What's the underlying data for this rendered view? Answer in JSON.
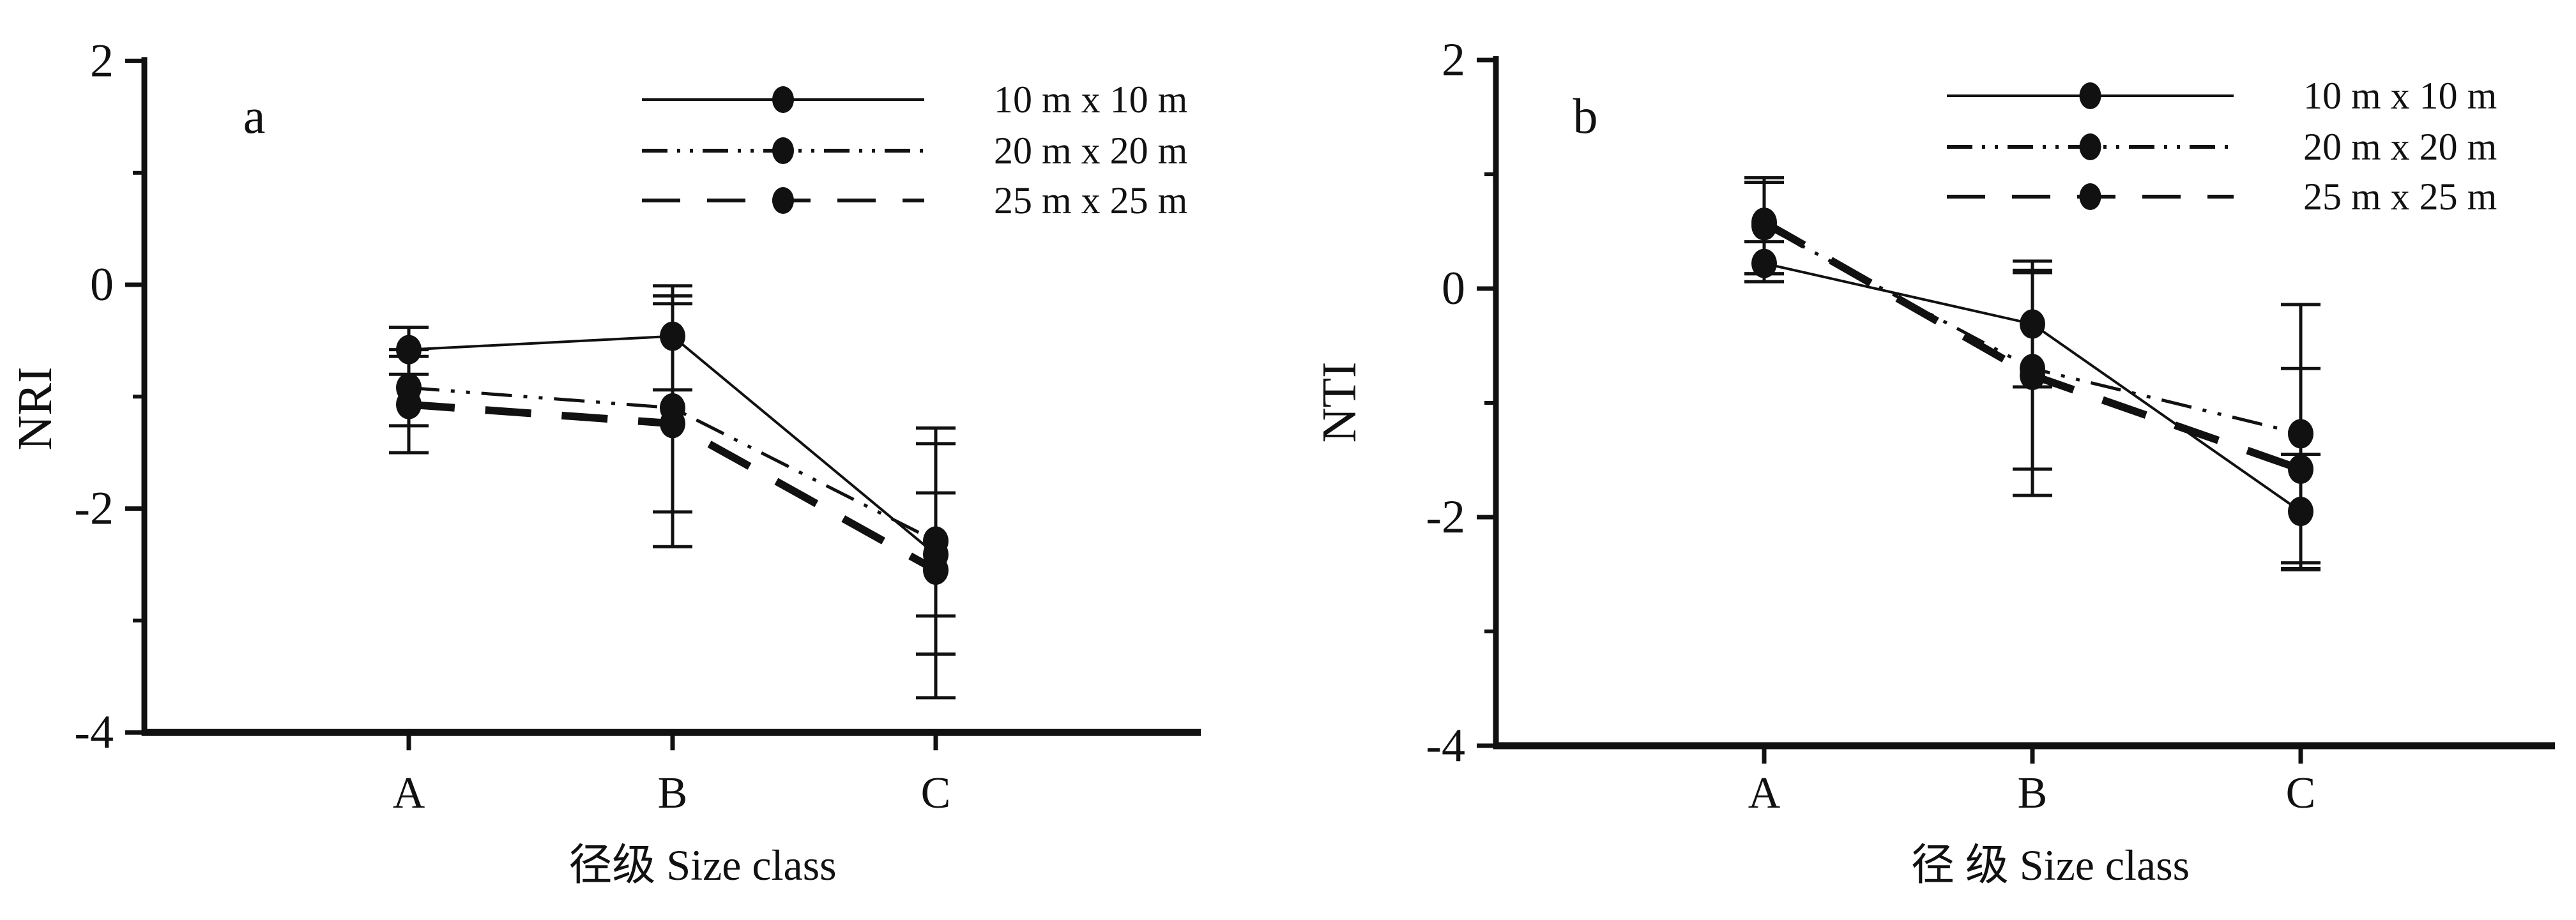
{
  "figure": {
    "background": "#ffffff",
    "ink_color": "#111111",
    "legend_labels": [
      "10 m x 10 m",
      "20 m x 20 m",
      "25 m x 25 m"
    ],
    "panel_letters": [
      "a",
      "b"
    ]
  },
  "chart_data": [
    {
      "type": "line",
      "panel": "a",
      "ylabel": "NRI",
      "xlabel": "径级 Size class",
      "categories": [
        "A",
        "B",
        "C"
      ],
      "ylim": [
        -4,
        2
      ],
      "yticks": [
        2,
        0,
        -2,
        -4
      ],
      "yticks_minor": [
        1,
        -1,
        -3
      ],
      "grid": false,
      "legend_position": "top-right",
      "series": [
        {
          "name": "10 m x 10 m",
          "style": "solid",
          "marker": "filled-circle",
          "values": [
            -0.58,
            -0.46,
            -2.41
          ],
          "err_up": [
            0.2,
            0.45,
            1.13
          ],
          "err_down": [
            0.22,
            0.48,
            1.28
          ]
        },
        {
          "name": "20 m x 20 m",
          "style": "dash-dot-dot",
          "marker": "filled-circle",
          "values": [
            -0.92,
            -1.1,
            -2.29
          ],
          "err_up": [
            0.34,
            1.0,
            0.87
          ],
          "err_down": [
            0.34,
            0.93,
            1.01
          ]
        },
        {
          "name": "25 m x 25 m",
          "style": "long-dash-thick",
          "marker": "filled-circle",
          "values": [
            -1.07,
            -1.24,
            -2.55
          ],
          "err_up": [
            0.43,
            1.07,
            0.69
          ],
          "err_down": [
            0.43,
            1.1,
            0.41
          ]
        }
      ]
    },
    {
      "type": "line",
      "panel": "b",
      "ylabel": "NTI",
      "xlabel": "径 级 Size class",
      "categories": [
        "A",
        "B",
        "C"
      ],
      "ylim": [
        -4,
        2
      ],
      "yticks": [
        2,
        0,
        -2,
        -4
      ],
      "yticks_minor": [
        1,
        -1,
        -3
      ],
      "grid": false,
      "legend_position": "top-right",
      "series": [
        {
          "name": "10 m x 10 m",
          "style": "solid",
          "marker": "filled-circle",
          "values": [
            0.22,
            -0.31,
            -1.95
          ],
          "err_up": [
            0.19,
            0.55,
            0.5
          ],
          "err_down": [
            0.16,
            0.55,
            0.5
          ]
        },
        {
          "name": "20 m x 20 m",
          "style": "dash-dot-dot",
          "marker": "filled-circle",
          "values": [
            0.55,
            -0.7,
            -1.27
          ],
          "err_up": [
            0.38,
            0.86,
            1.13
          ],
          "err_down": [
            0.42,
            0.88,
            1.13
          ]
        },
        {
          "name": "25 m x 25 m",
          "style": "long-dash-thick",
          "marker": "filled-circle",
          "values": [
            0.58,
            -0.76,
            -1.58
          ],
          "err_up": [
            0.39,
            0.9,
            0.88
          ],
          "err_down": [
            0.45,
            1.05,
            0.88
          ]
        }
      ]
    }
  ]
}
